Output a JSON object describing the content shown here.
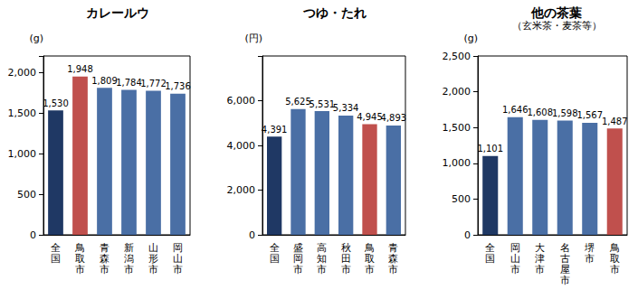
{
  "chart_data": [
    {
      "type": "bar",
      "title": "カレールウ",
      "y_label": "(g)",
      "categories": [
        "全国",
        "鳥取市",
        "青森市",
        "新潟市",
        "山形市",
        "岡山市"
      ],
      "values": [
        1530,
        1948,
        1809,
        1784,
        1772,
        1736
      ],
      "value_labels": [
        "1,530",
        "1,948",
        "1,809",
        "1,784",
        "1,772",
        "1,736"
      ],
      "colors": [
        "#1f3864",
        "#c0504d",
        "#4a6fa5",
        "#4a6fa5",
        "#4a6fa5",
        "#4a6fa5"
      ],
      "ylim": [
        0,
        2200
      ],
      "yticks": [
        0,
        500,
        {
          "value": 1000,
          "label": "1,000"
        },
        {
          "value": 1500,
          "label": "1,500"
        },
        {
          "value": 2000,
          "label": "2,000"
        }
      ],
      "grid": false,
      "data_labels": true
    },
    {
      "type": "bar",
      "title": "つゆ・たれ",
      "y_label": "(円)",
      "categories": [
        "全国",
        "盛岡市",
        "高知市",
        "秋田市",
        "鳥取市",
        "青森市"
      ],
      "values": [
        4391,
        5625,
        5531,
        5334,
        4945,
        4893
      ],
      "value_labels": [
        "4,391",
        "5,625",
        "5,531",
        "5,334",
        "4,945",
        "4,893"
      ],
      "colors": [
        "#1f3864",
        "#4a6fa5",
        "#4a6fa5",
        "#4a6fa5",
        "#c0504d",
        "#4a6fa5"
      ],
      "ylim": [
        0,
        8000
      ],
      "yticks": [
        0,
        {
          "value": 2000,
          "label": "2,000"
        },
        {
          "value": 4000,
          "label": "4,000"
        },
        {
          "value": 6000,
          "label": "6,000"
        }
      ],
      "grid": false,
      "data_labels": true
    },
    {
      "type": "bar",
      "title": "他の茶葉",
      "subtitle": "（玄米茶・麦茶等）",
      "y_label": "(g)",
      "categories": [
        "全国",
        "岡山市",
        "大津市",
        "名古屋市",
        "堺市",
        "鳥取市"
      ],
      "values": [
        1101,
        1646,
        1608,
        1598,
        1567,
        1487
      ],
      "value_labels": [
        "1,101",
        "1,646",
        "1,608",
        "1,598",
        "1,567",
        "1,487"
      ],
      "colors": [
        "#1f3864",
        "#4a6fa5",
        "#4a6fa5",
        "#4a6fa5",
        "#4a6fa5",
        "#c0504d"
      ],
      "ylim": [
        0,
        2500
      ],
      "yticks": [
        0,
        500,
        {
          "value": 1000,
          "label": "1,000"
        },
        {
          "value": 1500,
          "label": "1,500"
        },
        {
          "value": 2000,
          "label": "2,000"
        },
        {
          "value": 2500,
          "label": "2,500"
        }
      ],
      "grid": false,
      "data_labels": true
    }
  ]
}
